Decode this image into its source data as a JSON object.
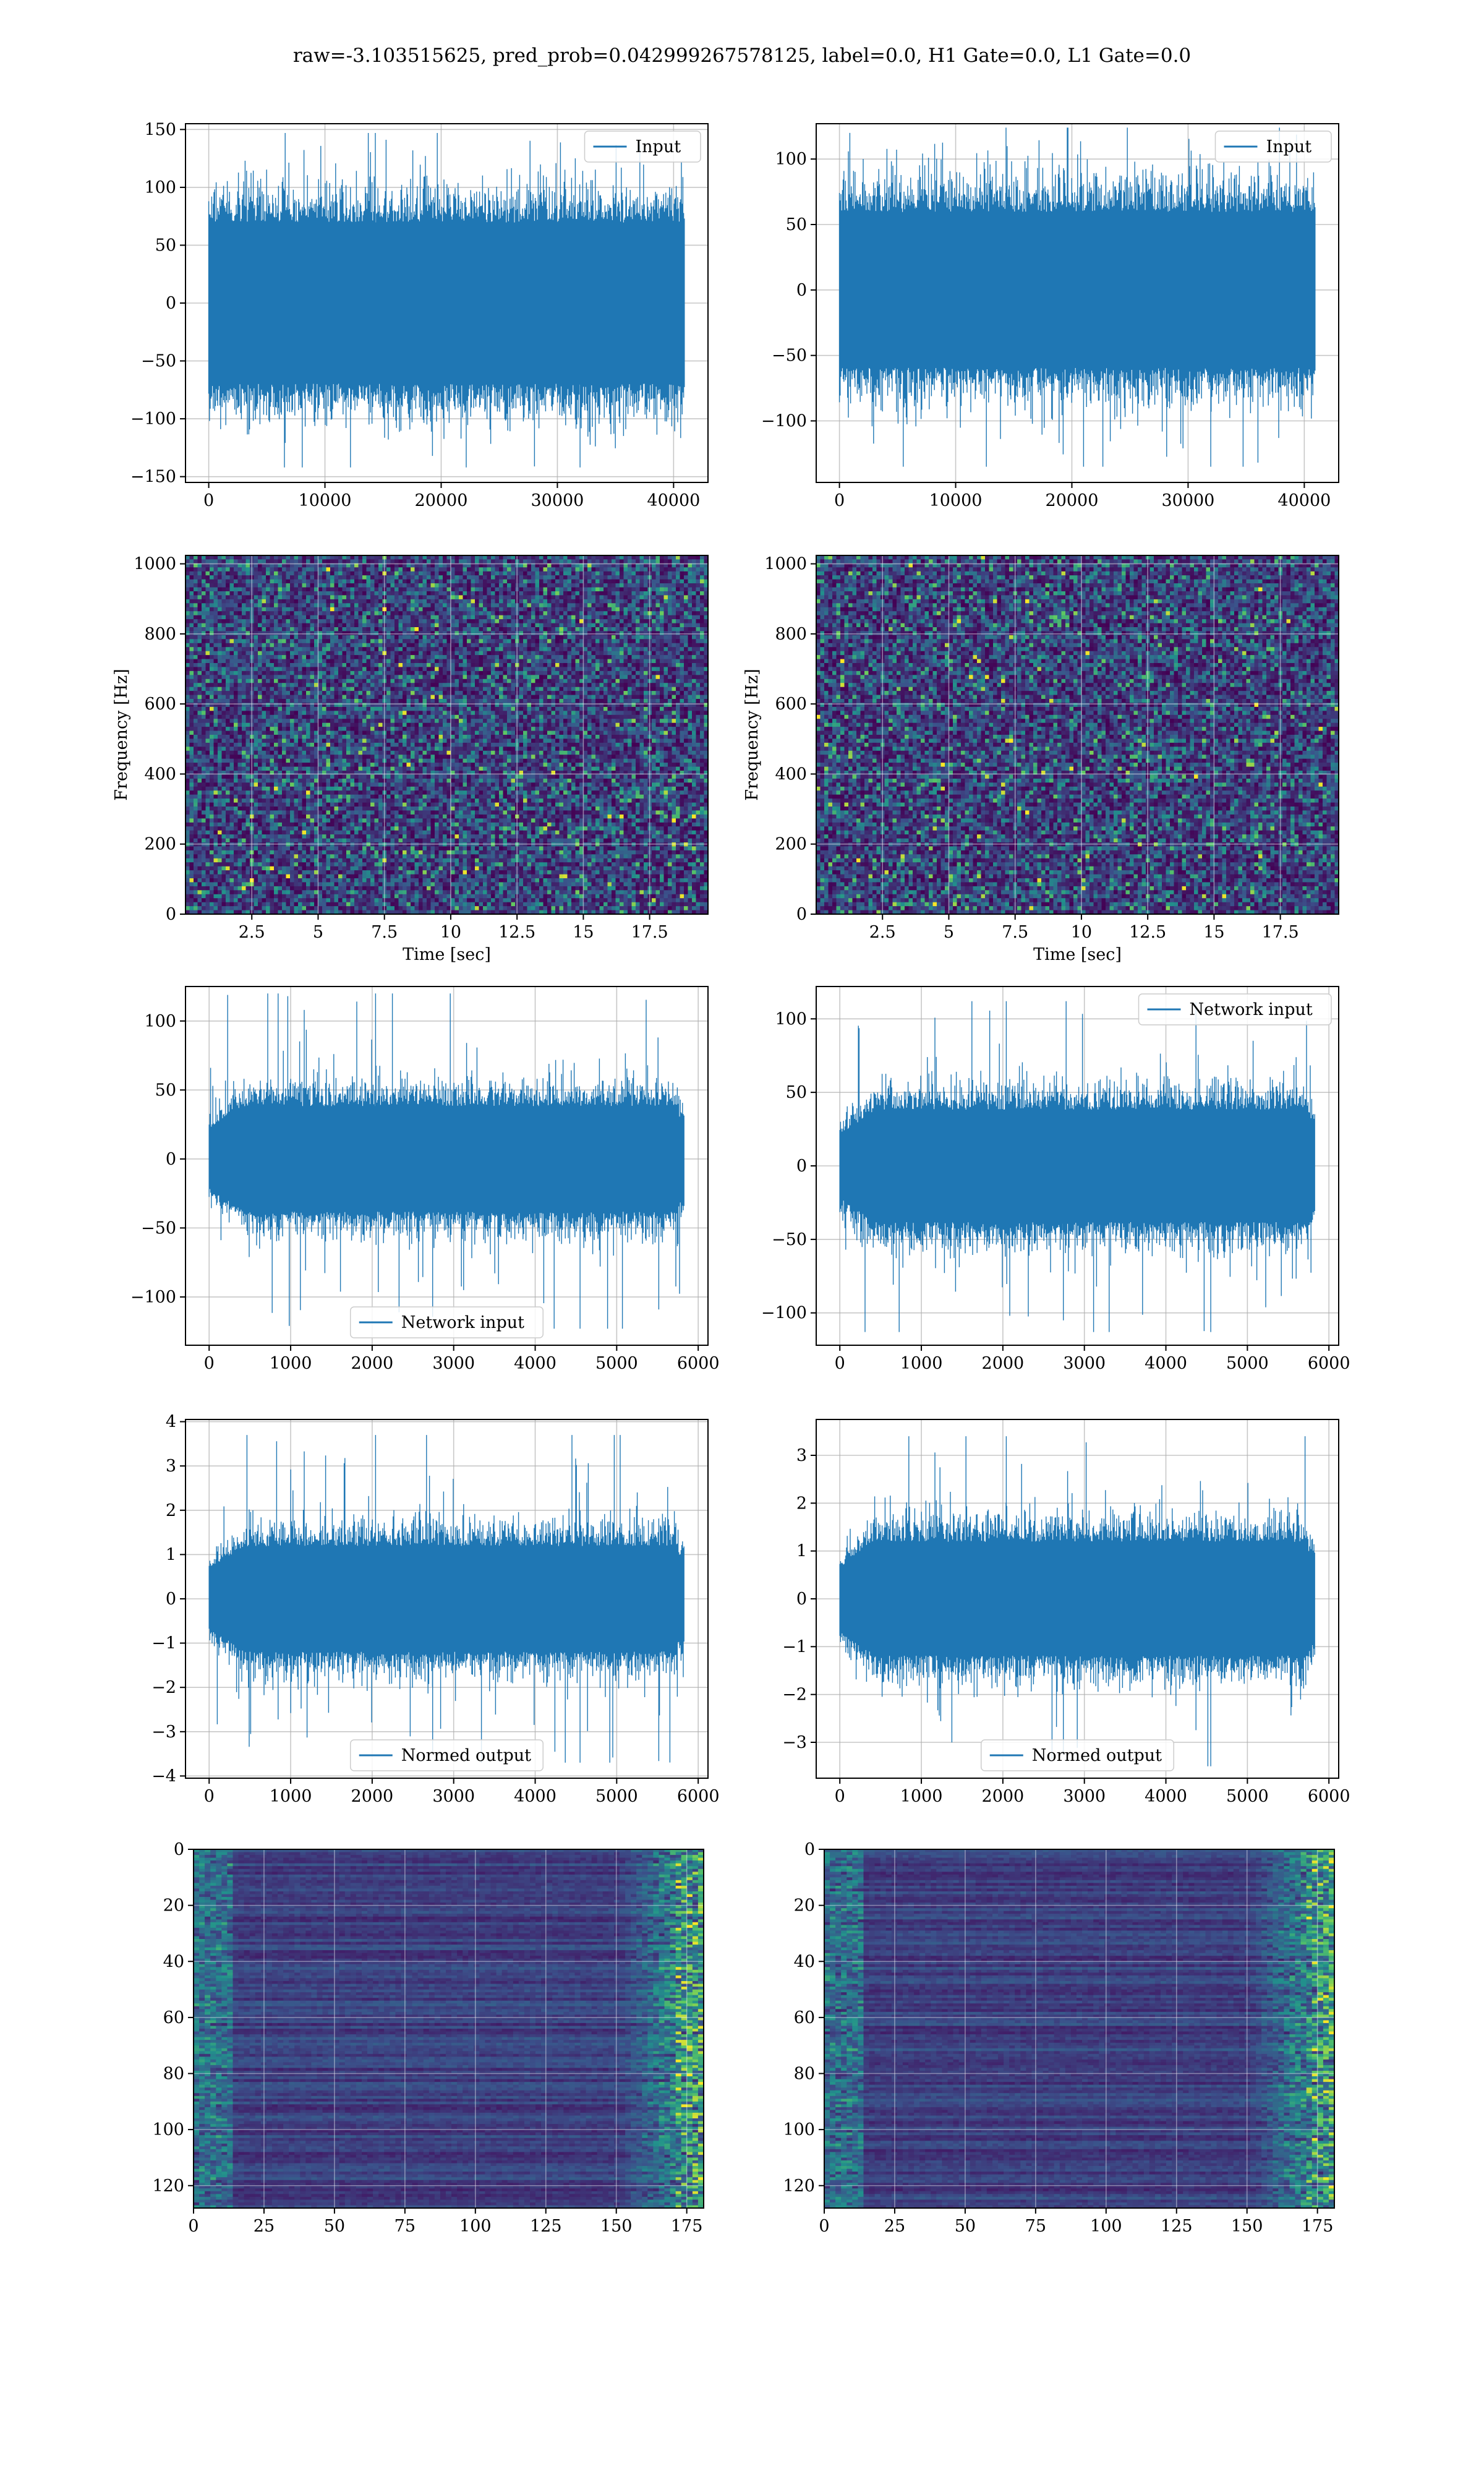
{
  "figure": {
    "suptitle": "raw=-3.103515625, pred_prob=0.042999267578125, label=0.0, H1 Gate=0.0, L1 Gate=0.0",
    "colors": {
      "line": "#1f77b4",
      "grid": "#b0b0b0",
      "axis": "#000000",
      "viridis": [
        "#440154",
        "#3b528b",
        "#21918c",
        "#5ec962",
        "#fde725"
      ]
    }
  },
  "chart_data": [
    {
      "id": "r1c1",
      "type": "line",
      "legend": [
        "Input"
      ],
      "legend_loc": "upper right",
      "xlim": [
        -2000,
        42960
      ],
      "ylim": [
        -155,
        155
      ],
      "xticks": [
        0,
        10000,
        20000,
        30000,
        40000
      ],
      "yticks": [
        -150,
        -100,
        -50,
        0,
        50,
        100,
        150
      ],
      "n_samples": 40960,
      "envelope": {
        "core": 82,
        "peak_max": 147,
        "peak_min": -142
      }
    },
    {
      "id": "r1c2",
      "type": "line",
      "legend": [
        "Input"
      ],
      "legend_loc": "upper right",
      "xlim": [
        -2000,
        42960
      ],
      "ylim": [
        -147,
        127
      ],
      "xticks": [
        0,
        10000,
        20000,
        30000,
        40000
      ],
      "yticks": [
        -100,
        -50,
        0,
        50,
        100
      ],
      "n_samples": 40960,
      "envelope": {
        "core": 70,
        "peak_max": 124,
        "peak_min": -135
      }
    },
    {
      "id": "r2c1",
      "type": "heatmap",
      "xlabel": "Time [sec]",
      "ylabel": "Frequency [Hz]",
      "xlim": [
        0,
        19.7
      ],
      "ylim": [
        0,
        1024
      ],
      "xticks": [
        2.5,
        5.0,
        7.5,
        10.0,
        12.5,
        15.0,
        17.5
      ],
      "yticks": [
        0,
        200,
        400,
        600,
        800,
        1000
      ],
      "colormap": "viridis"
    },
    {
      "id": "r2c2",
      "type": "heatmap",
      "xlabel": "Time [sec]",
      "ylabel": "Frequency [Hz]",
      "xlim": [
        0,
        19.7
      ],
      "ylim": [
        0,
        1024
      ],
      "xticks": [
        2.5,
        5.0,
        7.5,
        10.0,
        12.5,
        15.0,
        17.5
      ],
      "yticks": [
        0,
        200,
        400,
        600,
        800,
        1000
      ],
      "colormap": "viridis"
    },
    {
      "id": "r3c1",
      "type": "line",
      "legend": [
        "Network input"
      ],
      "legend_loc": "lower center",
      "xlim": [
        -290,
        6120
      ],
      "ylim": [
        -135,
        125
      ],
      "xticks": [
        0,
        1000,
        2000,
        3000,
        4000,
        5000,
        6000
      ],
      "yticks": [
        -100,
        -50,
        0,
        50,
        100
      ],
      "n_samples": 5834,
      "envelope": {
        "core": 45,
        "peak_max": 120,
        "peak_min": -123
      }
    },
    {
      "id": "r3c2",
      "type": "line",
      "legend": [
        "Network input"
      ],
      "legend_loc": "upper right",
      "xlim": [
        -290,
        6120
      ],
      "ylim": [
        -122,
        122
      ],
      "xticks": [
        0,
        1000,
        2000,
        3000,
        4000,
        5000,
        6000
      ],
      "yticks": [
        -100,
        -50,
        0,
        50,
        100
      ],
      "n_samples": 5834,
      "envelope": {
        "core": 45,
        "peak_max": 112,
        "peak_min": -113
      }
    },
    {
      "id": "r4c1",
      "type": "line",
      "legend": [
        "Normed output"
      ],
      "legend_loc": "lower center",
      "xlim": [
        -290,
        6120
      ],
      "ylim": [
        -4.05,
        4.05
      ],
      "xticks": [
        0,
        1000,
        2000,
        3000,
        4000,
        5000,
        6000
      ],
      "yticks": [
        -4,
        -3,
        -2,
        -1,
        0,
        1,
        2,
        3,
        4
      ],
      "n_samples": 5834,
      "envelope": {
        "core": 1.4,
        "peak_max": 3.7,
        "peak_min": -3.7
      }
    },
    {
      "id": "r4c2",
      "type": "line",
      "legend": [
        "Normed output"
      ],
      "legend_loc": "lower center",
      "xlim": [
        -290,
        6120
      ],
      "ylim": [
        -3.75,
        3.75
      ],
      "xticks": [
        0,
        1000,
        2000,
        3000,
        4000,
        5000,
        6000
      ],
      "yticks": [
        -3,
        -2,
        -1,
        0,
        1,
        2,
        3
      ],
      "n_samples": 5834,
      "envelope": {
        "core": 1.4,
        "peak_max": 3.4,
        "peak_min": -3.5
      }
    },
    {
      "id": "r5c1",
      "type": "heatmap",
      "origin": "upper",
      "colormap": "viridis",
      "xlim": [
        0,
        181
      ],
      "ylim": [
        128,
        0
      ],
      "xticks": [
        0,
        25,
        50,
        75,
        100,
        125,
        150,
        175
      ],
      "yticks": [
        0,
        20,
        40,
        60,
        80,
        100,
        120
      ],
      "hot_columns_from": 150
    },
    {
      "id": "r5c2",
      "type": "heatmap",
      "origin": "upper",
      "colormap": "viridis",
      "xlim": [
        0,
        181
      ],
      "ylim": [
        128,
        0
      ],
      "xticks": [
        0,
        25,
        50,
        75,
        100,
        125,
        150,
        175
      ],
      "yticks": [
        0,
        20,
        40,
        60,
        80,
        100,
        120
      ],
      "hot_columns_from": 150
    }
  ]
}
